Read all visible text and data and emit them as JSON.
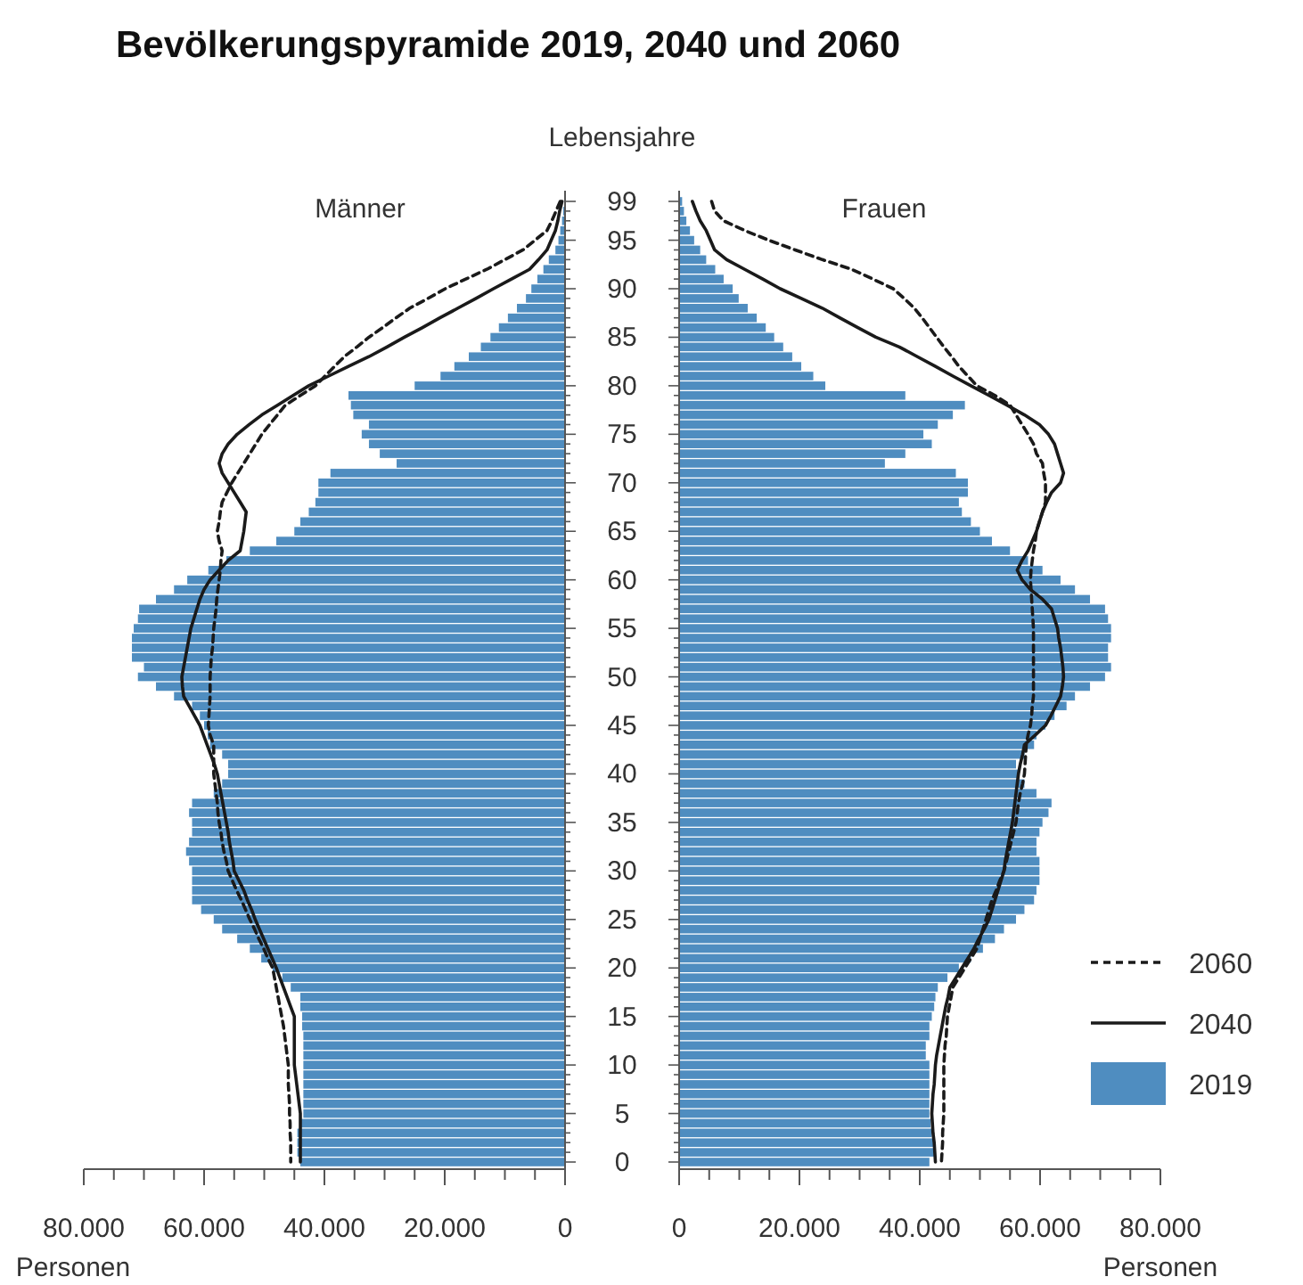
{
  "chart_data": [
    {
      "type": "bar",
      "orientation": "horizontal",
      "title": "Bevölkerungspyramide 2019, 2040 und 2060",
      "subtitle": "Männer",
      "xlabel": "Personen",
      "tick_labels": "x",
      "legend": false,
      "categories": [
        "99",
        null,
        null,
        null,
        "95",
        null,
        null,
        null,
        null,
        "90",
        null,
        null,
        null,
        null,
        "85",
        null,
        null,
        null,
        null,
        "80",
        null,
        null,
        null,
        null,
        "75",
        null,
        null,
        null,
        null,
        "70",
        null,
        null,
        null,
        null,
        "65",
        null,
        null,
        null,
        null,
        "60",
        null,
        null,
        null,
        null,
        "55",
        null,
        null,
        null,
        null,
        "50",
        null,
        null,
        null,
        null,
        "45",
        null,
        null,
        null,
        null,
        "40",
        null,
        null,
        null,
        null,
        "35",
        null,
        null,
        null,
        null,
        "30",
        null,
        null,
        null,
        null,
        "25",
        null,
        null,
        null,
        null,
        "20",
        null,
        null,
        null,
        null,
        "15",
        null,
        null,
        null,
        null,
        "10",
        null,
        null,
        null,
        null,
        "5",
        null,
        null,
        null,
        null,
        "0"
      ],
      "xlim": [
        80000,
        0
      ],
      "xticks": [
        {
          "value": 80000,
          "label": "80.000"
        },
        {
          "value": 75000,
          "label": null
        },
        {
          "value": 70000,
          "label": null
        },
        {
          "value": 65000,
          "label": null
        },
        {
          "value": 60000,
          "label": "60.000"
        },
        {
          "value": 55000,
          "label": null
        },
        {
          "value": 50000,
          "label": null
        },
        {
          "value": 45000,
          "label": null
        },
        {
          "value": 40000,
          "label": "40.000"
        },
        {
          "value": 35000,
          "label": null
        },
        {
          "value": 30000,
          "label": null
        },
        {
          "value": 25000,
          "label": null
        },
        {
          "value": 20000,
          "label": "20.000"
        },
        {
          "value": 15000,
          "label": null
        },
        {
          "value": 10000,
          "label": null
        },
        {
          "value": 5000,
          "label": null
        },
        0
      ],
      "series": [
        {
          "type": "bar",
          "color": "#4f8dc0",
          "values": [
            null,
            300,
            500,
            800,
            1100,
            1600,
            2700,
            3600,
            4600,
            5600,
            6500,
            8000,
            9500,
            11000,
            12400,
            14000,
            16000,
            18400,
            20700,
            25000,
            36000,
            35600,
            35200,
            32600,
            33800,
            32600,
            30800,
            28000,
            39000,
            41000,
            41000,
            41500,
            42600,
            44000,
            45000,
            48000,
            52400,
            56300,
            59300,
            62800,
            65000,
            68000,
            70800,
            71000,
            71700,
            72000,
            72000,
            72000,
            70000,
            71000,
            68000,
            65000,
            62000,
            60700,
            60000,
            59400,
            59000,
            57000,
            56000,
            56000,
            57000,
            58400,
            62000,
            62500,
            62000,
            62000,
            62500,
            63000,
            62500,
            62000,
            62000,
            62000,
            62000,
            60500,
            58400,
            57000,
            54500,
            52400,
            50500,
            48600,
            47000,
            45600,
            44000,
            44000,
            43700,
            43700,
            43500,
            43500,
            43500,
            43500,
            43500,
            43500,
            43500,
            43500,
            43500,
            44000,
            44500,
            44500,
            44500,
            44000
          ]
        },
        {
          "type": "line",
          "color": "#1a1a1a",
          "line_style": "solid",
          "values": [
            500,
            900,
            1200,
            1600,
            2300,
            3000,
            4400,
            5900,
            8900,
            11900,
            14800,
            17800,
            20800,
            23700,
            26700,
            29600,
            32600,
            36000,
            39300,
            42600,
            45200,
            47800,
            50400,
            52500,
            54500,
            56000,
            57000,
            57500,
            57000,
            56000,
            55000,
            54000,
            53000,
            53200,
            53400,
            53700,
            54000,
            56000,
            57500,
            59000,
            60000,
            60700,
            61200,
            61700,
            62200,
            62500,
            62800,
            63100,
            63400,
            63700,
            63600,
            63400,
            62500,
            61600,
            60700,
            60100,
            59500,
            58900,
            58300,
            57800,
            57500,
            57200,
            56900,
            56600,
            56300,
            56000,
            55800,
            55500,
            55200,
            55000,
            54200,
            53400,
            52800,
            52100,
            51500,
            50800,
            50100,
            49400,
            48700,
            48000,
            47400,
            46800,
            46200,
            45600,
            45000,
            45000,
            45000,
            45000,
            45000,
            45000,
            44800,
            44600,
            44400,
            44200,
            44000,
            44000,
            44000,
            44000,
            44000,
            44000
          ]
        },
        {
          "type": "line",
          "color": "#1a1a1a",
          "line_style": "dashed",
          "values": [
            800,
            1500,
            2200,
            3000,
            5000,
            7000,
            10000,
            13000,
            16500,
            19900,
            22800,
            25800,
            28100,
            30300,
            32600,
            34600,
            36700,
            38300,
            39900,
            41500,
            44000,
            46500,
            47800,
            49100,
            50400,
            51400,
            52400,
            53400,
            54400,
            55400,
            56200,
            57000,
            57300,
            57500,
            57800,
            57500,
            57000,
            57200,
            57300,
            57500,
            57700,
            57900,
            58000,
            58200,
            58400,
            58500,
            58600,
            58800,
            58900,
            59000,
            59000,
            59000,
            59100,
            59200,
            59300,
            59000,
            58400,
            58400,
            58400,
            58400,
            58200,
            58000,
            57800,
            57700,
            57500,
            57200,
            57000,
            56700,
            56300,
            56000,
            55300,
            54600,
            53800,
            53100,
            52400,
            51600,
            50900,
            50100,
            49400,
            48600,
            48300,
            48000,
            47700,
            47400,
            47100,
            46800,
            46600,
            46400,
            46200,
            46000,
            46000,
            46000,
            45900,
            45800,
            45800,
            45700,
            45700,
            45600,
            45600,
            45600
          ]
        }
      ]
    },
    {
      "type": "bar",
      "orientation": "horizontal",
      "subtitle": "Frauen",
      "xlabel": "Personen",
      "ylabel": "Lebensjahre",
      "legend": "bottom right",
      "categories": [
        "99",
        null,
        null,
        null,
        "95",
        null,
        null,
        null,
        null,
        "90",
        null,
        null,
        null,
        null,
        "85",
        null,
        null,
        null,
        null,
        "80",
        null,
        null,
        null,
        null,
        "75",
        null,
        null,
        null,
        null,
        "70",
        null,
        null,
        null,
        null,
        "65",
        null,
        null,
        null,
        null,
        "60",
        null,
        null,
        null,
        null,
        "55",
        null,
        null,
        null,
        null,
        "50",
        null,
        null,
        null,
        null,
        "45",
        null,
        null,
        null,
        null,
        "40",
        null,
        null,
        null,
        null,
        "35",
        null,
        null,
        null,
        null,
        "30",
        null,
        null,
        null,
        null,
        "25",
        null,
        null,
        null,
        null,
        "20",
        null,
        null,
        null,
        null,
        "15",
        null,
        null,
        null,
        null,
        "10",
        null,
        null,
        null,
        null,
        "5",
        null,
        null,
        null,
        null,
        "0"
      ],
      "xlim": [
        0,
        80000
      ],
      "xticks": [
        0,
        {
          "value": 5000,
          "label": null
        },
        {
          "value": 10000,
          "label": null
        },
        {
          "value": 15000,
          "label": null
        },
        {
          "value": 20000,
          "label": "20.000"
        },
        {
          "value": 25000,
          "label": null
        },
        {
          "value": 30000,
          "label": null
        },
        {
          "value": 35000,
          "label": null
        },
        {
          "value": 40000,
          "label": "40.000"
        },
        {
          "value": 45000,
          "label": null
        },
        {
          "value": 50000,
          "label": null
        },
        {
          "value": 55000,
          "label": null
        },
        {
          "value": 60000,
          "label": "60.000"
        },
        {
          "value": 65000,
          "label": null
        },
        {
          "value": 70000,
          "label": null
        },
        {
          "value": 75000,
          "label": null
        },
        {
          "value": 80000,
          "label": "80.000"
        }
      ],
      "series": [
        {
          "type": "bar",
          "name": "2019",
          "color": "#4f8dc0",
          "values": [
            500,
            800,
            1200,
            1800,
            2500,
            3500,
            4500,
            6000,
            7400,
            8900,
            9900,
            11400,
            12900,
            14400,
            15800,
            17300,
            18800,
            20300,
            22300,
            24300,
            37600,
            47500,
            45500,
            43000,
            40600,
            42000,
            37600,
            34200,
            46000,
            48000,
            48000,
            46500,
            47000,
            48500,
            50000,
            52000,
            55000,
            58000,
            60400,
            63400,
            65800,
            68300,
            70800,
            71300,
            71800,
            71800,
            71300,
            71300,
            71800,
            70800,
            68300,
            65800,
            64400,
            62400,
            60900,
            59400,
            59000,
            57400,
            56000,
            56400,
            57400,
            59400,
            61900,
            61400,
            60400,
            59900,
            59400,
            59400,
            59900,
            59900,
            59900,
            59400,
            59000,
            57400,
            56000,
            54000,
            52500,
            50500,
            48500,
            46500,
            44600,
            43000,
            42600,
            42400,
            42000,
            41600,
            41600,
            41000,
            41000,
            41600,
            41600,
            41600,
            41600,
            41600,
            41600,
            41800,
            42000,
            42400,
            42600,
            41600
          ]
        },
        {
          "type": "line",
          "name": "2040",
          "color": "#1a1a1a",
          "line_style": "solid",
          "values": [
            2200,
            2800,
            3500,
            4500,
            5200,
            5900,
            7900,
            10900,
            13900,
            16800,
            20300,
            23800,
            26700,
            29700,
            32700,
            36600,
            39600,
            42600,
            45500,
            48500,
            51500,
            54500,
            57400,
            59900,
            61400,
            62400,
            62900,
            63400,
            63900,
            63400,
            61900,
            61100,
            60400,
            59900,
            59400,
            58700,
            58000,
            57000,
            56200,
            57000,
            58400,
            60400,
            61900,
            62400,
            62900,
            63100,
            63400,
            63600,
            63800,
            63900,
            63700,
            63400,
            62600,
            61800,
            60900,
            59200,
            57400,
            57100,
            56700,
            56400,
            56200,
            56000,
            55800,
            55600,
            55400,
            55100,
            54800,
            54500,
            54200,
            54000,
            53500,
            53000,
            52500,
            52000,
            51500,
            50700,
            49800,
            49000,
            48000,
            47000,
            46000,
            45000,
            44700,
            44300,
            44000,
            43700,
            43400,
            43100,
            42800,
            42600,
            42500,
            42400,
            42200,
            42100,
            42000,
            42100,
            42200,
            42400,
            42500,
            42600
          ]
        },
        {
          "type": "line",
          "name": "2060",
          "color": "#1a1a1a",
          "line_style": "dashed",
          "values": [
            5400,
            5900,
            7400,
            10900,
            14900,
            19300,
            23800,
            28700,
            32200,
            35600,
            37400,
            39100,
            40400,
            41600,
            42800,
            44000,
            45300,
            46500,
            48000,
            49500,
            52500,
            55000,
            56000,
            57000,
            58000,
            58900,
            59400,
            60400,
            60600,
            60900,
            60900,
            60900,
            60400,
            59900,
            59400,
            59200,
            58900,
            58700,
            58500,
            58400,
            58500,
            58600,
            58700,
            58800,
            58900,
            58900,
            58900,
            58900,
            58900,
            58900,
            58900,
            58900,
            58700,
            58600,
            58400,
            58000,
            57700,
            57600,
            57500,
            57400,
            57100,
            56700,
            56400,
            56200,
            56000,
            55600,
            55200,
            54800,
            54400,
            54000,
            53300,
            52700,
            52000,
            51500,
            51000,
            50500,
            50000,
            49500,
            48500,
            47500,
            46500,
            45500,
            45200,
            44900,
            44600,
            44500,
            44400,
            44200,
            44100,
            44000,
            44000,
            44000,
            44000,
            44000,
            44000,
            43900,
            43800,
            43800,
            43700,
            43600
          ]
        }
      ]
    }
  ]
}
